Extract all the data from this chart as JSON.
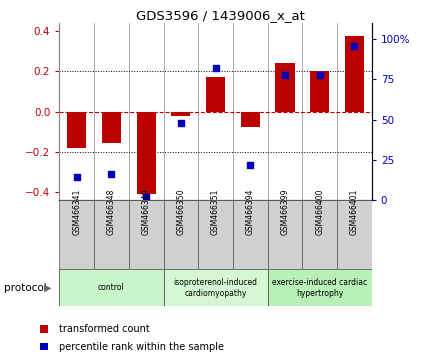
{
  "title": "GDS3596 / 1439006_x_at",
  "samples": [
    "GSM466341",
    "GSM466348",
    "GSM466349",
    "GSM466350",
    "GSM466351",
    "GSM466394",
    "GSM466399",
    "GSM466400",
    "GSM466401"
  ],
  "transformed_count": [
    -0.18,
    -0.155,
    -0.41,
    -0.02,
    0.17,
    -0.075,
    0.24,
    0.2,
    0.375
  ],
  "percentile_rank": [
    14,
    16,
    2,
    48,
    82,
    22,
    78,
    78,
    96
  ],
  "groups": [
    {
      "label": "control",
      "start": 0,
      "end": 3,
      "color": "#c8f5c8"
    },
    {
      "label": "isoproterenol-induced\ncardiomyopathy",
      "start": 3,
      "end": 6,
      "color": "#d4f8d4"
    },
    {
      "label": "exercise-induced cardiac\nhypertrophy",
      "start": 6,
      "end": 9,
      "color": "#b8f0b8"
    }
  ],
  "bar_color": "#bb0000",
  "dot_color": "#0000bb",
  "ylim_left": [
    -0.44,
    0.44
  ],
  "ylim_right": [
    0,
    110
  ],
  "yticks_left": [
    -0.4,
    -0.2,
    0.0,
    0.2,
    0.4
  ],
  "yticks_right": [
    0,
    25,
    50,
    75,
    100
  ],
  "ytick_labels_right": [
    "0",
    "25",
    "50",
    "75",
    "100%"
  ],
  "bar_width": 0.55,
  "background_color": "#ffffff",
  "protocol_label": "protocol",
  "xlabel_bg": "#d0d0d0"
}
